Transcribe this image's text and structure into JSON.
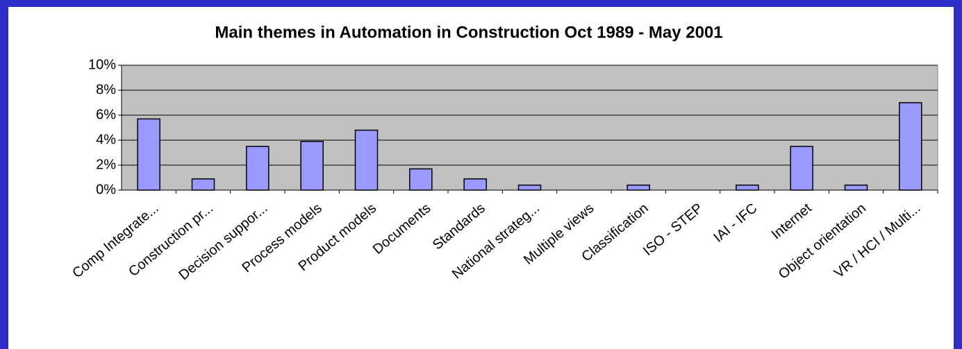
{
  "chart_data": {
    "type": "bar",
    "title": "Main themes in Automation in Construction Oct 1989 - May 2001",
    "categories": [
      "Comp Integrate...",
      "Construction pr...",
      "Decision suppor...",
      "Process models",
      "Product models",
      "Documents",
      "Standards",
      "National strateg...",
      "Multiple views",
      "Classification",
      "ISO - STEP",
      "IAI - IFC",
      "Internet",
      "Object orientation",
      "VR / HCI / Multi..."
    ],
    "values": [
      5.7,
      0.9,
      3.5,
      3.9,
      4.8,
      1.7,
      0.9,
      0.4,
      0,
      0.4,
      0,
      0.4,
      3.5,
      0.4,
      7.0
    ],
    "color": "#9999ff",
    "ylim": [
      0,
      10
    ],
    "yticks": [
      {
        "value": 0,
        "label": "0%"
      },
      {
        "value": 2,
        "label": "2%"
      },
      {
        "value": 4,
        "label": "4%"
      },
      {
        "value": 6,
        "label": "6%"
      },
      {
        "value": 8,
        "label": "8%"
      },
      {
        "value": 10,
        "label": "10%"
      }
    ],
    "grid": true
  }
}
